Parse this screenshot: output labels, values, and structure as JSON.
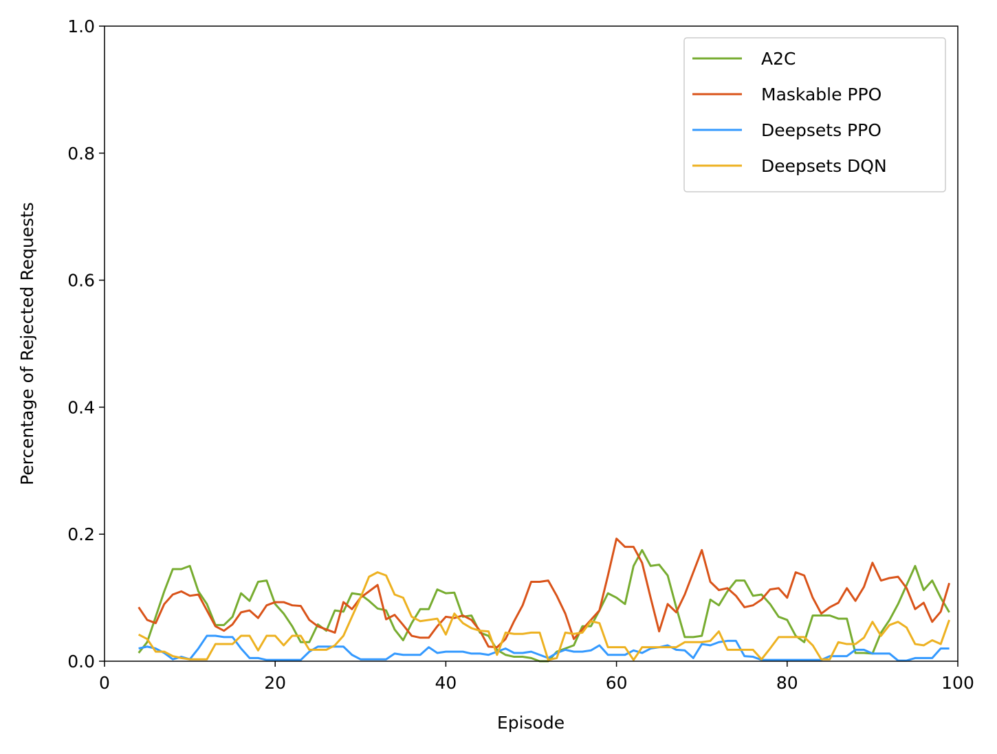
{
  "chart_data": {
    "type": "line",
    "x_label": "Episode",
    "y_label": "Percentage of Rejected Requests",
    "xlim": [
      0,
      100
    ],
    "xticks": [
      0,
      20,
      40,
      60,
      80,
      100
    ],
    "ylim": [
      0,
      1.0
    ],
    "yticks": [
      {
        "value": 0,
        "label": "0.0"
      },
      0.2,
      0.4,
      0.6,
      0.8,
      {
        "value": 1,
        "label": "1.0"
      }
    ],
    "legend": "upper right",
    "x": [
      4,
      5,
      6,
      7,
      8,
      9,
      10,
      11,
      12,
      13,
      14,
      15,
      16,
      17,
      18,
      19,
      20,
      21,
      22,
      23,
      24,
      25,
      26,
      27,
      28,
      29,
      30,
      31,
      32,
      33,
      34,
      35,
      36,
      37,
      38,
      39,
      40,
      41,
      42,
      43,
      44,
      45,
      46,
      47,
      48,
      49,
      50,
      51,
      52,
      53,
      54,
      55,
      56,
      57,
      58,
      59,
      60,
      61,
      62,
      63,
      64,
      65,
      66,
      67,
      68,
      69,
      70,
      71,
      72,
      73,
      74,
      75,
      76,
      77,
      78,
      79,
      80,
      81,
      82,
      83,
      84,
      85,
      86,
      87,
      88,
      89,
      90,
      91,
      92,
      93,
      94,
      95,
      96,
      97,
      98,
      99
    ],
    "series": [
      {
        "name": "A2C",
        "color": "#77ac30",
        "values": [
          0.013,
          0.03,
          0.07,
          0.11,
          0.145,
          0.145,
          0.15,
          0.11,
          0.09,
          0.057,
          0.057,
          0.07,
          0.107,
          0.095,
          0.125,
          0.127,
          0.09,
          0.075,
          0.055,
          0.03,
          0.03,
          0.058,
          0.048,
          0.08,
          0.078,
          0.107,
          0.105,
          0.095,
          0.083,
          0.08,
          0.05,
          0.033,
          0.06,
          0.082,
          0.082,
          0.113,
          0.107,
          0.108,
          0.07,
          0.072,
          0.045,
          0.04,
          0.018,
          0.01,
          0.007,
          0.007,
          0.005,
          0.0,
          0.0,
          0.015,
          0.02,
          0.025,
          0.055,
          0.055,
          0.08,
          0.107,
          0.1,
          0.09,
          0.15,
          0.175,
          0.15,
          0.152,
          0.135,
          0.085,
          0.038,
          0.038,
          0.04,
          0.097,
          0.088,
          0.11,
          0.127,
          0.127,
          0.103,
          0.105,
          0.09,
          0.07,
          0.065,
          0.04,
          0.03,
          0.072,
          0.072,
          0.072,
          0.067,
          0.067,
          0.013,
          0.013,
          0.012,
          0.045,
          0.065,
          0.09,
          0.12,
          0.15,
          0.112,
          0.127,
          0.1,
          0.077
        ]
      },
      {
        "name": "Maskable PPO",
        "color": "#d95319",
        "values": [
          0.085,
          0.065,
          0.06,
          0.09,
          0.105,
          0.11,
          0.103,
          0.105,
          0.08,
          0.055,
          0.048,
          0.058,
          0.077,
          0.08,
          0.068,
          0.088,
          0.093,
          0.093,
          0.088,
          0.087,
          0.065,
          0.055,
          0.05,
          0.045,
          0.093,
          0.082,
          0.1,
          0.11,
          0.12,
          0.066,
          0.073,
          0.057,
          0.04,
          0.037,
          0.037,
          0.055,
          0.07,
          0.068,
          0.072,
          0.065,
          0.048,
          0.023,
          0.022,
          0.035,
          0.063,
          0.088,
          0.125,
          0.125,
          0.127,
          0.103,
          0.075,
          0.035,
          0.05,
          0.065,
          0.08,
          0.135,
          0.193,
          0.18,
          0.18,
          0.155,
          0.1,
          0.047,
          0.09,
          0.077,
          0.105,
          0.14,
          0.175,
          0.125,
          0.112,
          0.115,
          0.103,
          0.085,
          0.088,
          0.097,
          0.113,
          0.115,
          0.1,
          0.14,
          0.135,
          0.1,
          0.075,
          0.085,
          0.092,
          0.115,
          0.095,
          0.117,
          0.155,
          0.127,
          0.131,
          0.133,
          0.115,
          0.082,
          0.092,
          0.062,
          0.078,
          0.123
        ]
      },
      {
        "name": "Deepsets PPO",
        "color": "#3399ff",
        "values": [
          0.02,
          0.023,
          0.02,
          0.013,
          0.003,
          0.007,
          0.003,
          0.02,
          0.04,
          0.04,
          0.038,
          0.038,
          0.02,
          0.005,
          0.005,
          0.002,
          0.002,
          0.002,
          0.002,
          0.002,
          0.015,
          0.023,
          0.023,
          0.023,
          0.023,
          0.01,
          0.003,
          0.003,
          0.003,
          0.003,
          0.012,
          0.01,
          0.01,
          0.01,
          0.022,
          0.013,
          0.015,
          0.015,
          0.015,
          0.012,
          0.012,
          0.01,
          0.015,
          0.02,
          0.013,
          0.013,
          0.015,
          0.01,
          0.005,
          0.013,
          0.018,
          0.015,
          0.015,
          0.017,
          0.025,
          0.01,
          0.01,
          0.01,
          0.017,
          0.013,
          0.02,
          0.022,
          0.025,
          0.018,
          0.017,
          0.005,
          0.027,
          0.025,
          0.03,
          0.032,
          0.032,
          0.008,
          0.007,
          0.002,
          0.002,
          0.002,
          0.002,
          0.002,
          0.002,
          0.002,
          0.002,
          0.008,
          0.008,
          0.008,
          0.018,
          0.018,
          0.012,
          0.012,
          0.012,
          0.001,
          0.001,
          0.005,
          0.005,
          0.005,
          0.02,
          0.02
        ]
      },
      {
        "name": "Deepsets DQN",
        "color": "#edb120",
        "values": [
          0.042,
          0.035,
          0.015,
          0.015,
          0.008,
          0.005,
          0.003,
          0.003,
          0.003,
          0.027,
          0.027,
          0.027,
          0.04,
          0.04,
          0.017,
          0.04,
          0.04,
          0.025,
          0.04,
          0.04,
          0.018,
          0.018,
          0.018,
          0.025,
          0.04,
          0.07,
          0.1,
          0.133,
          0.14,
          0.135,
          0.105,
          0.1,
          0.07,
          0.063,
          0.065,
          0.067,
          0.042,
          0.075,
          0.06,
          0.052,
          0.048,
          0.047,
          0.01,
          0.045,
          0.043,
          0.043,
          0.045,
          0.045,
          0.002,
          0.005,
          0.045,
          0.043,
          0.045,
          0.063,
          0.06,
          0.022,
          0.022,
          0.022,
          0.002,
          0.022,
          0.022,
          0.022,
          0.022,
          0.022,
          0.03,
          0.03,
          0.03,
          0.032,
          0.047,
          0.018,
          0.018,
          0.018,
          0.018,
          0.003,
          0.02,
          0.038,
          0.038,
          0.038,
          0.038,
          0.025,
          0.003,
          0.003,
          0.03,
          0.027,
          0.027,
          0.037,
          0.062,
          0.04,
          0.057,
          0.062,
          0.053,
          0.027,
          0.025,
          0.033,
          0.027,
          0.065
        ]
      }
    ]
  }
}
